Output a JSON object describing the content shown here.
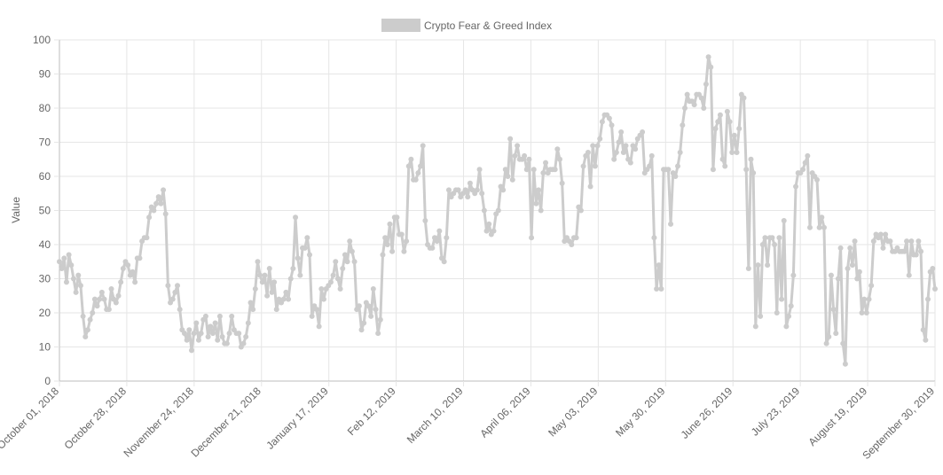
{
  "chart_data": {
    "type": "line",
    "title": "",
    "xlabel": "",
    "ylabel": "Value",
    "ylim": [
      0,
      100
    ],
    "yticks": [
      0,
      10,
      20,
      30,
      40,
      50,
      60,
      70,
      80,
      90,
      100
    ],
    "grid": true,
    "legend_position": "top",
    "colors": {
      "line": "#cccccc",
      "point": "#cccccc",
      "grid": "#e6e6e6",
      "axis": "#bdbdbd",
      "text": "#666666"
    },
    "x_tick_labels": [
      "October 01, 2018",
      "October 28, 2018",
      "November 24, 2018",
      "December 21, 2018",
      "January 17, 2019",
      "Feb 12, 2019",
      "March 10, 2019",
      "April 06, 2019",
      "May 03, 2019",
      "May 30, 2019",
      "June 26, 2019",
      "July 23, 2019",
      "August 19, 2019",
      "September 30, 2019"
    ],
    "series": [
      {
        "name": "Crypto Fear & Greed Index",
        "values": [
          35,
          33,
          36,
          29,
          37,
          34,
          30,
          26,
          31,
          28,
          19,
          13,
          15,
          18,
          20,
          24,
          22,
          24,
          26,
          24,
          21,
          21,
          27,
          24,
          23,
          25,
          29,
          33,
          35,
          34,
          31,
          32,
          29,
          36,
          36,
          41,
          42,
          42,
          48,
          51,
          50,
          52,
          54,
          52,
          56,
          49,
          28,
          23,
          24,
          26,
          28,
          21,
          15,
          14,
          12,
          15,
          9,
          14,
          17,
          12,
          14,
          18,
          19,
          13,
          16,
          14,
          17,
          12,
          19,
          13,
          11,
          11,
          14,
          19,
          15,
          14,
          14,
          10,
          11,
          13,
          17,
          23,
          21,
          27,
          35,
          31,
          29,
          31,
          25,
          33,
          26,
          29,
          21,
          24,
          23,
          24,
          26,
          24,
          30,
          33,
          48,
          36,
          31,
          39,
          39,
          42,
          37,
          19,
          22,
          21,
          16,
          27,
          24,
          27,
          28,
          29,
          31,
          35,
          30,
          27,
          33,
          37,
          35,
          41,
          38,
          35,
          21,
          22,
          15,
          17,
          23,
          22,
          19,
          27,
          21,
          14,
          18,
          37,
          42,
          40,
          46,
          38,
          48,
          48,
          43,
          43,
          38,
          41,
          63,
          65,
          59,
          59,
          61,
          63,
          69,
          47,
          40,
          39,
          39,
          42,
          41,
          44,
          36,
          35,
          42,
          56,
          54,
          55,
          56,
          56,
          54,
          55,
          56,
          54,
          58,
          56,
          55,
          56,
          62,
          55,
          50,
          44,
          46,
          43,
          44,
          49,
          50,
          57,
          56,
          62,
          60,
          71,
          59,
          66,
          69,
          65,
          65,
          66,
          62,
          65,
          42,
          62,
          52,
          56,
          50,
          61,
          64,
          61,
          62,
          62,
          62,
          68,
          65,
          58,
          41,
          42,
          41,
          40,
          42,
          42,
          51,
          50,
          63,
          66,
          67,
          57,
          69,
          63,
          69,
          71,
          76,
          78,
          78,
          77,
          75,
          65,
          67,
          70,
          73,
          67,
          69,
          65,
          64,
          69,
          68,
          71,
          72,
          73,
          61,
          62,
          63,
          66,
          42,
          27,
          34,
          27,
          62,
          62,
          62,
          46,
          61,
          60,
          63,
          67,
          75,
          80,
          84,
          82,
          82,
          81,
          84,
          84,
          83,
          80,
          87,
          95,
          92,
          62,
          74,
          76,
          78,
          65,
          63,
          79,
          76,
          67,
          72,
          67,
          74,
          84,
          83,
          62,
          33,
          65,
          61,
          16,
          34,
          19,
          40,
          42,
          34,
          42,
          42,
          40,
          20,
          42,
          24,
          47,
          16,
          19,
          22,
          31,
          57,
          61,
          61,
          62,
          64,
          66,
          45,
          61,
          60,
          59,
          45,
          48,
          45,
          11,
          13,
          31,
          21,
          14,
          30,
          39,
          11,
          5,
          33,
          39,
          34,
          41,
          30,
          32,
          20,
          24,
          20,
          24,
          28,
          41,
          43,
          42,
          43,
          39,
          43,
          41,
          41,
          38,
          38,
          39,
          38,
          38,
          38,
          41,
          31,
          41,
          37,
          37,
          41,
          38,
          15,
          12,
          24,
          32,
          33,
          27
        ]
      }
    ]
  }
}
